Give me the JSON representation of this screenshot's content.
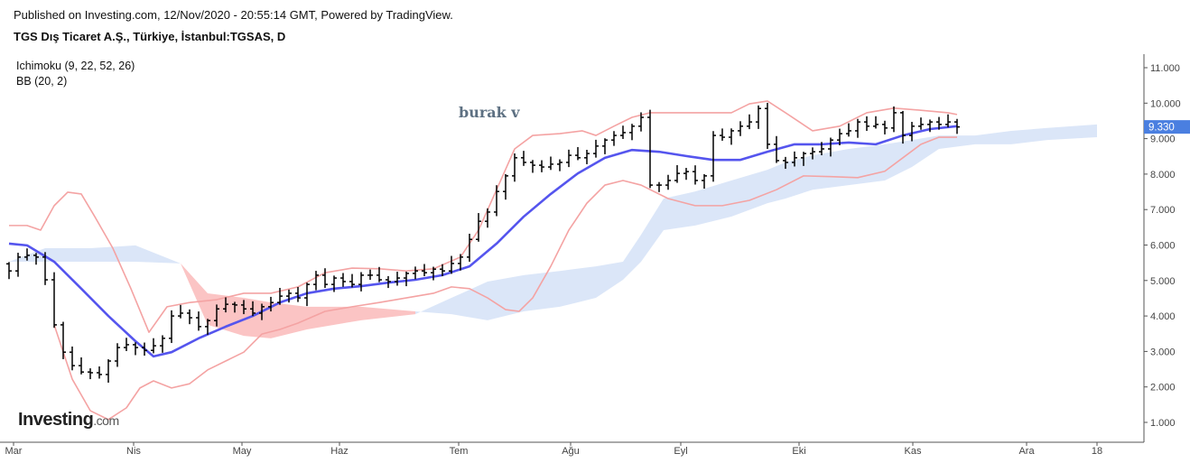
{
  "header": {
    "published": "Published on Investing.com, 12/Nov/2020 - 20:55:14 GMT, Powered by TradingView.",
    "symbol_title": "TGS Dış Ticaret A.Ş., Türkiye, İstanbul:TGSAS, D"
  },
  "indicators": [
    "Ichimoku (9, 22, 52, 26)",
    "BB (20, 2)"
  ],
  "annotation": "burak v",
  "logo": {
    "main": "Investing",
    "suffix": ".com"
  },
  "colors": {
    "price": "#000000",
    "bb_basis": "#5555ee",
    "bb_bands": "#f4a3a3",
    "cloud_bull": "#dbe6f8",
    "cloud_bear": "#fbc4c4",
    "price_tag": "#4a7fe0"
  },
  "chart_data": {
    "type": "ohlc",
    "title": "TGS Dış Ticaret A.Ş., Türkiye, İstanbul:TGSAS, D",
    "ylim": [
      0.6,
      11.4
    ],
    "y_ticks": [
      "1.000",
      "2.000",
      "3.000",
      "4.000",
      "5.000",
      "6.000",
      "7.000",
      "8.000",
      "9.000",
      "10.000",
      "11.000"
    ],
    "x_ticks": [
      {
        "label": "Mar",
        "i": 0.5
      },
      {
        "label": "Nis",
        "i": 13.8
      },
      {
        "label": "May",
        "i": 25.8
      },
      {
        "label": "Haz",
        "i": 36.6
      },
      {
        "label": "Tem",
        "i": 49.8
      },
      {
        "label": "Ağu",
        "i": 62.2
      },
      {
        "label": "Eyl",
        "i": 74.4
      },
      {
        "label": "Eki",
        "i": 87.5
      },
      {
        "label": "Kas",
        "i": 100.1
      },
      {
        "label": "Ara",
        "i": 112.7
      },
      {
        "label": "18",
        "i": 120.5
      }
    ],
    "last_price": "9.330",
    "close": [
      5.27,
      5.66,
      5.71,
      5.66,
      5.02,
      3.75,
      2.98,
      2.6,
      2.42,
      2.4,
      2.35,
      2.73,
      3.11,
      3.19,
      3.11,
      3.03,
      3.16,
      3.37,
      4.0,
      4.08,
      3.95,
      3.7,
      3.87,
      4.2,
      4.33,
      4.31,
      4.2,
      4.08,
      4.26,
      4.38,
      4.56,
      4.64,
      4.51,
      4.89,
      5.15,
      4.89,
      5.07,
      4.97,
      4.89,
      5.15,
      5.15,
      5.02,
      4.97,
      5.07,
      5.2,
      5.27,
      5.22,
      5.32,
      5.27,
      5.48,
      5.66,
      6.16,
      6.67,
      6.93,
      7.51,
      7.95,
      8.46,
      8.33,
      8.25,
      8.2,
      8.28,
      8.33,
      8.53,
      8.46,
      8.58,
      8.79,
      8.96,
      9.09,
      9.17,
      9.35,
      9.6,
      7.69,
      7.69,
      7.82,
      8.02,
      8.07,
      7.82,
      7.95,
      9.09,
      9.04,
      9.22,
      9.35,
      9.47,
      9.85,
      8.84,
      8.38,
      8.33,
      8.46,
      8.58,
      8.63,
      8.71,
      8.96,
      9.14,
      9.22,
      9.47,
      9.35,
      9.4,
      9.3,
      9.73,
      9.09,
      9.35,
      9.4,
      9.47,
      9.4,
      9.47,
      9.33
    ],
    "bb_basis": {
      "i": [
        0,
        2,
        5,
        8,
        11,
        14,
        16,
        18,
        21,
        24,
        27,
        30,
        33,
        36,
        39,
        42,
        45,
        48,
        51,
        54,
        57,
        60,
        63,
        66,
        69,
        72,
        75,
        78,
        81,
        84,
        87,
        90,
        93,
        96,
        99,
        102,
        105
      ],
      "v": [
        6.04,
        5.99,
        5.53,
        4.77,
        4.0,
        3.29,
        2.86,
        2.98,
        3.37,
        3.7,
        4.0,
        4.38,
        4.64,
        4.77,
        4.84,
        4.94,
        5.02,
        5.15,
        5.4,
        6.04,
        6.8,
        7.44,
        8.02,
        8.46,
        8.68,
        8.63,
        8.51,
        8.4,
        8.4,
        8.63,
        8.84,
        8.84,
        8.89,
        8.84,
        9.09,
        9.27,
        9.35
      ]
    },
    "bb_upper": {
      "i": [
        0,
        2,
        3.5,
        5,
        6.5,
        8,
        9.5,
        11.5,
        13.5,
        15.5,
        17.5,
        20,
        23,
        26,
        29,
        32,
        35,
        38,
        41,
        44,
        47,
        50,
        52,
        54,
        56,
        58,
        61,
        63.5,
        65,
        67,
        69,
        71,
        75,
        78,
        80,
        82,
        84,
        86,
        89,
        92,
        95,
        98,
        101,
        104,
        105
      ],
      "v": [
        6.55,
        6.55,
        6.42,
        7.11,
        7.49,
        7.44,
        6.8,
        5.91,
        4.77,
        3.54,
        4.26,
        4.38,
        4.46,
        4.64,
        4.64,
        4.82,
        5.22,
        5.35,
        5.33,
        5.27,
        5.33,
        5.66,
        6.42,
        7.56,
        8.71,
        9.09,
        9.14,
        9.22,
        9.09,
        9.35,
        9.6,
        9.73,
        9.73,
        9.73,
        9.73,
        9.98,
        10.06,
        9.73,
        9.22,
        9.35,
        9.73,
        9.86,
        9.8,
        9.73,
        9.68
      ]
    },
    "bb_lower": {
      "i": [
        5,
        7,
        9,
        11,
        13,
        14.5,
        16,
        18,
        20,
        22,
        24,
        26,
        28,
        30,
        32,
        35,
        38,
        41,
        44,
        47,
        49,
        51,
        53,
        55,
        56.5,
        58,
        60,
        62,
        64,
        66,
        68,
        70,
        73,
        76,
        79,
        82,
        85,
        88,
        91,
        94,
        97,
        99,
        101,
        103,
        105
      ],
      "v": [
        3.75,
        2.22,
        1.33,
        1.08,
        1.41,
        1.97,
        2.17,
        1.97,
        2.09,
        2.48,
        2.73,
        2.98,
        3.49,
        3.62,
        3.8,
        4.13,
        4.26,
        4.38,
        4.51,
        4.64,
        4.82,
        4.77,
        4.51,
        4.18,
        4.13,
        4.51,
        5.4,
        6.42,
        7.18,
        7.69,
        7.82,
        7.69,
        7.31,
        7.11,
        7.11,
        7.26,
        7.56,
        7.95,
        7.93,
        7.9,
        8.08,
        8.46,
        8.84,
        9.04,
        9.04
      ]
    },
    "cloud": {
      "i": [
        0,
        4,
        9,
        14,
        19,
        22,
        26,
        29,
        33,
        39,
        45,
        49,
        53,
        57,
        61,
        65,
        68,
        70,
        72.5,
        76,
        80,
        84,
        86,
        89,
        93,
        97,
        100,
        103,
        107,
        111,
        115,
        120.5
      ],
      "span_a": [
        5.53,
        5.91,
        5.91,
        5.99,
        5.48,
        3.75,
        3.44,
        3.37,
        3.62,
        3.88,
        4.05,
        4.51,
        4.97,
        5.15,
        5.27,
        5.4,
        5.53,
        6.29,
        7.31,
        7.51,
        7.82,
        8.12,
        8.33,
        8.53,
        8.71,
        8.84,
        8.96,
        9.09,
        9.09,
        9.22,
        9.3,
        9.4
      ],
      "span_b": [
        5.53,
        5.53,
        5.53,
        5.53,
        5.48,
        4.64,
        4.51,
        4.38,
        4.26,
        4.26,
        4.13,
        4.05,
        3.88,
        4.13,
        4.26,
        4.51,
        5.02,
        5.53,
        6.42,
        6.55,
        6.8,
        7.18,
        7.31,
        7.56,
        7.69,
        7.82,
        8.2,
        8.71,
        8.84,
        8.84,
        8.96,
        9.04
      ]
    }
  }
}
